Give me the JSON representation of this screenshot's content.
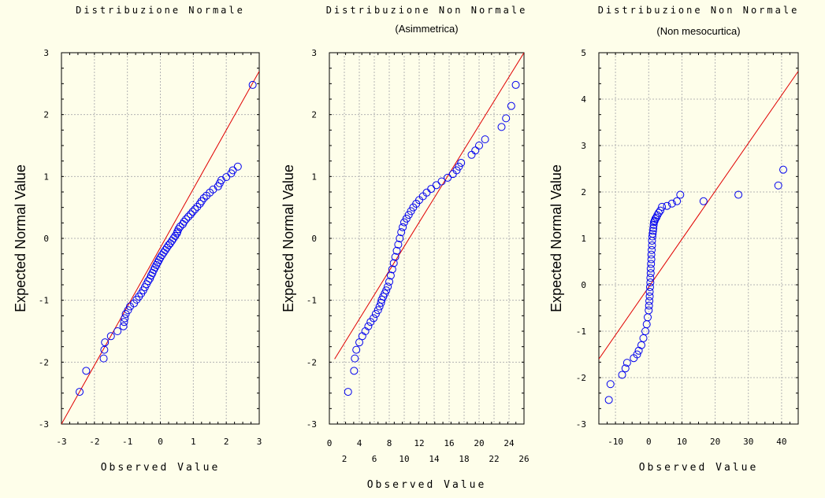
{
  "chart_data": [
    {
      "type": "scatter",
      "title": "Distribuzione Normale",
      "subtitle": "",
      "xlabel": "Observed Value",
      "ylabel": "Expected Normal Value",
      "xlim": [
        -3,
        3
      ],
      "ylim": [
        -3,
        3
      ],
      "x_ticks": [
        "-3",
        "-2",
        "-1",
        "0",
        "1",
        "2",
        "3"
      ],
      "x_tick_values": [
        -3,
        -2,
        -1,
        0,
        1,
        2,
        3
      ],
      "y_ticks": [
        "-3",
        "-2",
        "-1",
        "0",
        "1",
        "2",
        "3"
      ],
      "y_tick_values": [
        -3,
        -2,
        -1,
        0,
        1,
        2,
        3
      ],
      "fit_line": {
        "x": [
          -3,
          3
        ],
        "y": [
          -3,
          2.7
        ]
      },
      "points": {
        "x": [
          -2.45,
          -2.25,
          -1.72,
          -1.7,
          -1.68,
          -1.5,
          -1.3,
          -1.12,
          -1.1,
          -1.08,
          -1.05,
          -0.98,
          -0.92,
          -0.8,
          -0.72,
          -0.65,
          -0.58,
          -0.52,
          -0.47,
          -0.42,
          -0.37,
          -0.32,
          -0.28,
          -0.24,
          -0.2,
          -0.16,
          -0.12,
          -0.08,
          -0.04,
          0.0,
          0.05,
          0.1,
          0.15,
          0.2,
          0.25,
          0.3,
          0.35,
          0.4,
          0.45,
          0.5,
          0.52,
          0.55,
          0.6,
          0.68,
          0.72,
          0.78,
          0.85,
          0.92,
          0.98,
          1.05,
          1.12,
          1.2,
          1.25,
          1.32,
          1.4,
          1.5,
          1.6,
          1.75,
          1.8,
          1.85,
          2.0,
          2.15,
          2.2,
          2.35,
          2.8
        ],
        "y": [
          -2.48,
          -2.14,
          -1.94,
          -1.8,
          -1.68,
          -1.58,
          -1.5,
          -1.42,
          -1.35,
          -1.29,
          -1.22,
          -1.16,
          -1.1,
          -1.05,
          -0.99,
          -0.94,
          -0.89,
          -0.84,
          -0.79,
          -0.74,
          -0.69,
          -0.65,
          -0.6,
          -0.56,
          -0.51,
          -0.47,
          -0.43,
          -0.39,
          -0.35,
          -0.31,
          -0.27,
          -0.23,
          -0.19,
          -0.15,
          -0.11,
          -0.08,
          -0.04,
          0.0,
          0.04,
          0.08,
          0.11,
          0.15,
          0.19,
          0.23,
          0.27,
          0.31,
          0.35,
          0.39,
          0.43,
          0.47,
          0.51,
          0.56,
          0.6,
          0.65,
          0.69,
          0.74,
          0.79,
          0.84,
          0.89,
          0.94,
          0.99,
          1.05,
          1.1,
          1.16,
          2.48
        ]
      }
    },
    {
      "type": "scatter",
      "title": "Distribuzione Non Normale",
      "subtitle": "(Asimmetrica)",
      "xlabel": "Observed Value",
      "ylabel": "Expected Normal Value",
      "xlim": [
        0,
        26
      ],
      "ylim": [
        -3,
        3
      ],
      "x_ticks": [
        "0",
        "4",
        "8",
        "12",
        "16",
        "20",
        "24",
        "2",
        "6",
        "10",
        "14",
        "18",
        "22",
        "26"
      ],
      "x_tick_values": [
        0,
        4,
        8,
        12,
        16,
        20,
        24,
        2,
        6,
        10,
        14,
        18,
        22,
        26
      ],
      "y_ticks": [
        "-3",
        "-2",
        "-1",
        "0",
        "1",
        "2",
        "3"
      ],
      "y_tick_values": [
        -3,
        -2,
        -1,
        0,
        1,
        2,
        3
      ],
      "fit_line": {
        "x": [
          0.7,
          26
        ],
        "y": [
          -1.95,
          3.0
        ]
      },
      "points": {
        "x": [
          2.5,
          3.3,
          3.4,
          3.6,
          4.0,
          4.4,
          4.8,
          5.2,
          5.5,
          5.9,
          6.2,
          6.5,
          6.7,
          6.9,
          7.0,
          7.2,
          7.4,
          7.6,
          7.8,
          8.0,
          8.2,
          8.4,
          8.6,
          8.8,
          9.0,
          9.2,
          9.4,
          9.6,
          9.8,
          10.0,
          10.3,
          10.6,
          10.9,
          11.2,
          11.6,
          12.0,
          12.5,
          13.0,
          13.6,
          14.3,
          15.0,
          15.8,
          16.5,
          17.0,
          17.3,
          17.6,
          19.0,
          19.5,
          20.0,
          20.8,
          23.0,
          23.6,
          24.3,
          24.9
        ],
        "y": [
          -2.48,
          -2.14,
          -1.94,
          -1.8,
          -1.68,
          -1.58,
          -1.5,
          -1.42,
          -1.35,
          -1.29,
          -1.22,
          -1.16,
          -1.1,
          -1.04,
          -0.99,
          -0.94,
          -0.89,
          -0.84,
          -0.78,
          -0.7,
          -0.6,
          -0.5,
          -0.4,
          -0.3,
          -0.2,
          -0.1,
          0.0,
          0.1,
          0.18,
          0.26,
          0.32,
          0.38,
          0.44,
          0.5,
          0.56,
          0.62,
          0.68,
          0.74,
          0.8,
          0.86,
          0.92,
          0.98,
          1.04,
          1.1,
          1.16,
          1.22,
          1.35,
          1.42,
          1.5,
          1.6,
          1.8,
          1.94,
          2.14,
          2.48
        ]
      }
    },
    {
      "type": "scatter",
      "title": "Distribuzione Non Normale",
      "subtitle": "(Non mesocurtica)",
      "xlabel": "Observed Value",
      "ylabel": "Expected Normal Value",
      "xlim": [
        -15,
        45
      ],
      "ylim": [
        -3,
        5
      ],
      "x_ticks": [
        "-10",
        "0",
        "10",
        "20",
        "30",
        "40"
      ],
      "x_tick_values": [
        -10,
        0,
        10,
        20,
        30,
        40
      ],
      "y_ticks": [
        "-3",
        "-2",
        "-1",
        "0",
        "1",
        "2",
        "3",
        "4",
        "5"
      ],
      "y_tick_values": [
        -3,
        -2,
        -1,
        0,
        1,
        2,
        3,
        4,
        5
      ],
      "fit_line": {
        "x": [
          -15,
          45
        ],
        "y": [
          -1.6,
          4.6
        ]
      },
      "points": {
        "x": [
          -12.0,
          -11.5,
          -8.0,
          -7.0,
          -6.5,
          -4.5,
          -3.5,
          -3.0,
          -2.2,
          -1.6,
          -1.0,
          -0.6,
          -0.3,
          0.0,
          0.1,
          0.2,
          0.3,
          0.3,
          0.4,
          0.5,
          0.5,
          0.6,
          0.6,
          0.7,
          0.8,
          0.8,
          0.9,
          1.0,
          1.0,
          1.1,
          1.2,
          1.3,
          1.4,
          1.5,
          1.6,
          1.8,
          2.0,
          2.3,
          2.6,
          3.0,
          3.5,
          4.0,
          5.5,
          7.0,
          8.5,
          9.5,
          16.5,
          27.0,
          39.0,
          40.5
        ],
        "y": [
          -2.48,
          -2.14,
          -1.94,
          -1.8,
          -1.68,
          -1.58,
          -1.5,
          -1.42,
          -1.3,
          -1.15,
          -1.0,
          -0.85,
          -0.7,
          -0.55,
          -0.45,
          -0.35,
          -0.25,
          -0.15,
          -0.05,
          0.05,
          0.15,
          0.25,
          0.35,
          0.45,
          0.55,
          0.65,
          0.75,
          0.85,
          0.95,
          1.04,
          1.1,
          1.16,
          1.22,
          1.29,
          1.35,
          1.38,
          1.42,
          1.45,
          1.5,
          1.55,
          1.6,
          1.68,
          1.7,
          1.75,
          1.8,
          1.94,
          1.8,
          1.94,
          2.14,
          2.48
        ]
      }
    }
  ]
}
